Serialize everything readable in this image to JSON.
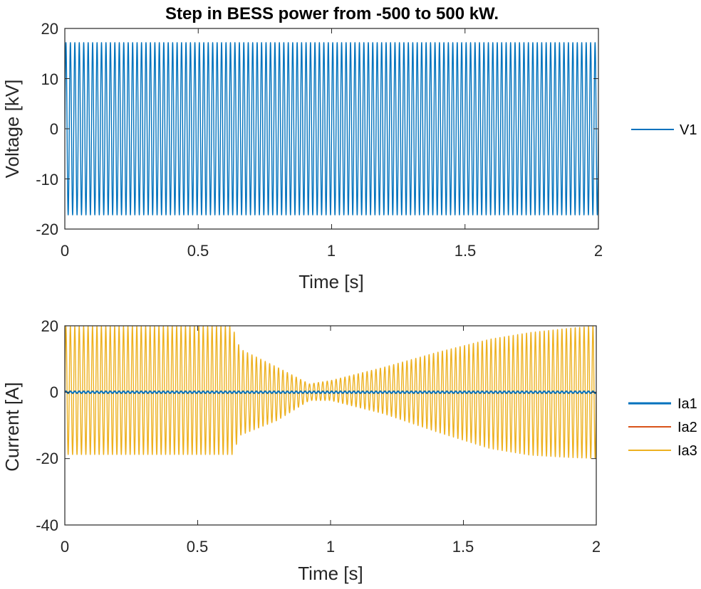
{
  "chart_data": [
    {
      "type": "line",
      "title": "Step in BESS power from -500 to 500 kW.",
      "xlabel": "Time [s]",
      "ylabel": "Voltage [kV]",
      "xlim": [
        0,
        2
      ],
      "ylim": [
        -20,
        20
      ],
      "xticks": [
        "0",
        "0.5",
        "1",
        "1.5",
        "2"
      ],
      "yticks": [
        "-20",
        "-10",
        "0",
        "10",
        "20"
      ],
      "grid": false,
      "legend_position": "outside-right",
      "frequency_hz": 60,
      "series": [
        {
          "name": "V1",
          "color": "#0072BD",
          "waveform": "sine",
          "x": [
            0,
            2
          ],
          "amplitude": [
            17.2,
            17.2
          ],
          "offset": [
            0,
            0
          ]
        }
      ]
    },
    {
      "type": "line",
      "title": "",
      "xlabel": "Time [s]",
      "ylabel": "Current [A]",
      "xlim": [
        0,
        2
      ],
      "ylim": [
        -40,
        20
      ],
      "xticks": [
        "0",
        "0.5",
        "1",
        "1.5",
        "2"
      ],
      "yticks": [
        "-40",
        "-20",
        "0",
        "20"
      ],
      "grid": false,
      "legend_position": "outside-right",
      "frequency_hz": 60,
      "series": [
        {
          "name": "Ia1",
          "color": "#0072BD",
          "waveform": "sine",
          "x": [
            0,
            2
          ],
          "amplitude": [
            0.3,
            0.3
          ],
          "offset": [
            0,
            0
          ]
        },
        {
          "name": "Ia2",
          "color": "#D95319",
          "waveform": "sine",
          "x": [
            0,
            2
          ],
          "amplitude": [
            0.4,
            0.4
          ],
          "offset": [
            0,
            0
          ]
        },
        {
          "name": "Ia3",
          "color": "#EDB120",
          "waveform": "sine",
          "x": [
            0,
            0.5,
            0.63,
            0.66,
            0.8,
            0.92,
            1.0,
            1.2,
            1.4,
            1.6,
            1.75,
            1.9,
            2.0
          ],
          "amplitude": [
            19.3,
            19.3,
            19.3,
            13.0,
            8.0,
            2.5,
            3.0,
            7.0,
            12.0,
            16.5,
            18.5,
            19.5,
            20.0
          ],
          "offset": [
            0.5,
            0.5,
            0.5,
            0.0,
            -0.5,
            0.0,
            0.5,
            0.5,
            0.0,
            -0.5,
            -0.5,
            -0.2,
            0.0
          ]
        }
      ]
    }
  ]
}
